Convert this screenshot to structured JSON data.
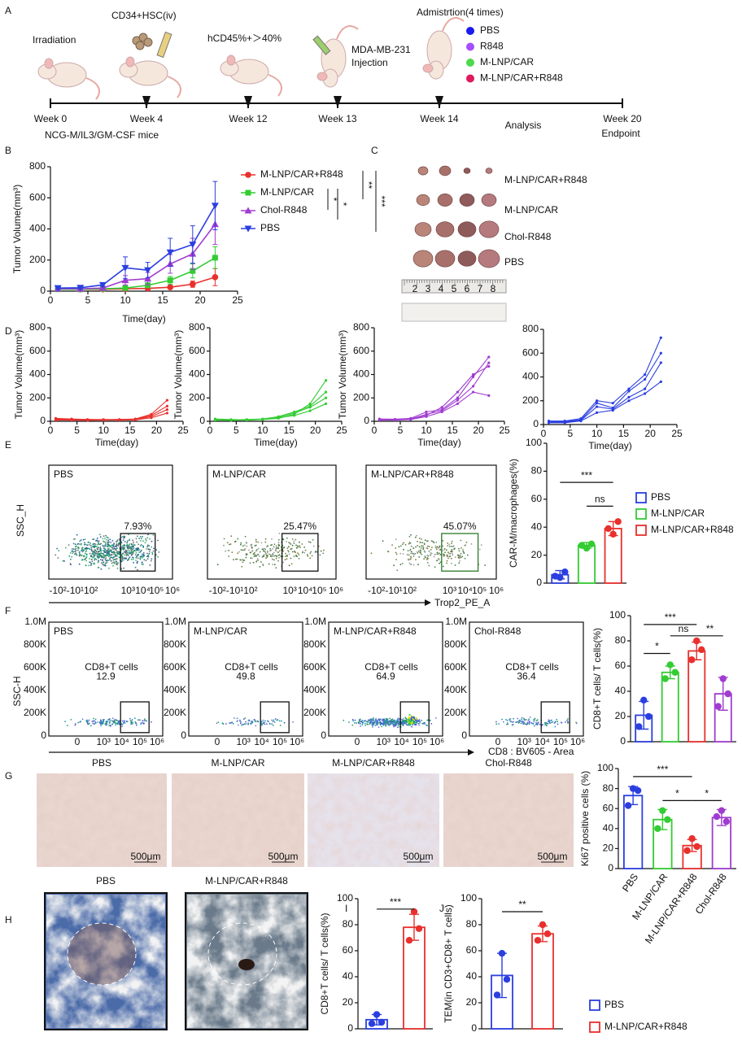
{
  "panel_labels": [
    "A",
    "B",
    "C",
    "D",
    "E",
    "F",
    "G",
    "H",
    "I",
    "J"
  ],
  "timeline": {
    "weeks": [
      "Week 0",
      "Week 4",
      "Week 12",
      "Week 13",
      "Week 14",
      "Week 20"
    ],
    "notes": [
      "NCG-M/IL3/GM-CSF  mice",
      "Analysis",
      "Endpoint"
    ],
    "events": [
      "Irradiation",
      "CD34+HSC(iv)",
      "hCD45%+＞40%",
      "MDA-MB-231",
      "Injection",
      "Admistrtion(4 times)"
    ],
    "groups": [
      {
        "name": "PBS",
        "color": "#1a1aee"
      },
      {
        "name": "R848",
        "color": "#a64dff"
      },
      {
        "name": "M-LNP/CAR",
        "color": "#4cd94c"
      },
      {
        "name": "M-LNP/CAR+R848",
        "color": "#de1a5a"
      }
    ]
  },
  "panel_c": {
    "groups": [
      "M-LNP/CAR+R848",
      "M-LNP/CAR",
      "Chol-R848",
      "PBS"
    ],
    "ruler": [
      "2",
      "3",
      "4",
      "5",
      "6",
      "7",
      "8"
    ]
  },
  "panel_e": {
    "y_label": "SSC_H",
    "x_label": "Trop2_PE_A",
    "x_ticks": [
      "-10²-10¹10²",
      "10³",
      "10⁴",
      "10⁵",
      "10⁶"
    ],
    "plots": [
      {
        "label": "PBS",
        "gate": "7.93%"
      },
      {
        "label": "M-LNP/CAR",
        "gate": "25.47%"
      },
      {
        "label": "M-LNP/CAR+R848",
        "gate": "45.07%"
      }
    ]
  },
  "panel_f": {
    "y_label": "SSC-H",
    "x_label": "CD8 : BV605 - Area",
    "y_ticks": [
      "1.0M",
      "800K",
      "600K",
      "400K",
      "200K",
      "0"
    ],
    "x_ticks": [
      "0",
      "10³",
      "10⁴",
      "10⁵",
      "10⁶"
    ],
    "gate_label": "CD8+T cells",
    "plots": [
      {
        "label": "PBS",
        "value": "12.9"
      },
      {
        "label": "M-LNP/CAR",
        "value": "49.8"
      },
      {
        "label": "M-LNP/CAR+R848",
        "value": "64.9"
      },
      {
        "label": "Chol-R848",
        "value": "36.4"
      }
    ]
  },
  "panel_g": {
    "groups": [
      "PBS",
      "M-LNP/CAR",
      "M-LNP/CAR+R848",
      "Chol-R848"
    ],
    "scale": "500μm"
  },
  "panel_h": {
    "groups": [
      "PBS",
      "M-LNP/CAR+R848"
    ]
  },
  "chart_data": [
    {
      "type": "line",
      "ylabel": "Tumor Volume(mm³)",
      "xlabel": "Time(day)",
      "x": [
        1,
        4,
        7,
        10,
        13,
        16,
        19,
        22
      ],
      "xlim": [
        0,
        25
      ],
      "xticks": [
        0,
        5,
        10,
        15,
        20,
        25
      ],
      "ylim": [
        0,
        800
      ],
      "yticks": [
        0,
        200,
        400,
        600,
        800
      ],
      "series": [
        {
          "name": "M-LNP/CAR+R848",
          "color": "#e8302d",
          "marker": "circle",
          "values": [
            15,
            12,
            12,
            15,
            18,
            25,
            45,
            90
          ],
          "errors": [
            4,
            4,
            4,
            5,
            6,
            10,
            20,
            55
          ]
        },
        {
          "name": "M-LNP/CAR",
          "color": "#33cc33",
          "marker": "square",
          "values": [
            12,
            12,
            15,
            20,
            38,
            70,
            130,
            215
          ],
          "errors": [
            3,
            3,
            5,
            10,
            15,
            25,
            45,
            70
          ]
        },
        {
          "name": "Chol-R848",
          "color": "#a03cd0",
          "marker": "triangle-up",
          "values": [
            15,
            15,
            20,
            70,
            80,
            175,
            240,
            430
          ],
          "errors": [
            5,
            5,
            10,
            30,
            40,
            60,
            100,
            130
          ]
        },
        {
          "name": "PBS",
          "color": "#2b3fe0",
          "marker": "triangle-down",
          "values": [
            20,
            22,
            40,
            150,
            135,
            250,
            300,
            550
          ],
          "errors": [
            5,
            6,
            10,
            70,
            50,
            90,
            120,
            155
          ]
        }
      ],
      "annotations": [
        "*",
        "*",
        "**",
        "***"
      ]
    },
    {
      "type": "line",
      "ylabel": "Tumor Volume(mm³)",
      "xlabel": "Time(day)",
      "x": [
        1,
        4,
        7,
        10,
        13,
        16,
        19,
        22
      ],
      "xlim": [
        0,
        25
      ],
      "xticks": [
        0,
        5,
        10,
        15,
        20,
        25
      ],
      "ylim": [
        0,
        800
      ],
      "yticks": [
        0,
        200,
        400,
        600,
        800
      ],
      "series": [
        {
          "color": "#e8302d",
          "values": [
            25,
            20,
            15,
            15,
            15,
            20,
            60,
            180
          ]
        },
        {
          "color": "#e8302d",
          "values": [
            20,
            18,
            15,
            12,
            15,
            18,
            50,
            130
          ]
        },
        {
          "color": "#e8302d",
          "values": [
            15,
            12,
            10,
            12,
            12,
            15,
            40,
            100
          ]
        },
        {
          "color": "#e8302d",
          "values": [
            10,
            10,
            8,
            10,
            10,
            12,
            30,
            70
          ]
        }
      ]
    },
    {
      "type": "line",
      "ylabel": "Tumor Volume(mm³)",
      "xlabel": "Time(day)",
      "x": [
        1,
        4,
        7,
        10,
        13,
        16,
        19,
        22
      ],
      "xlim": [
        0,
        25
      ],
      "xticks": [
        0,
        5,
        10,
        15,
        20,
        25
      ],
      "ylim": [
        0,
        800
      ],
      "yticks": [
        0,
        200,
        400,
        600,
        800
      ],
      "series": [
        {
          "color": "#33cc33",
          "values": [
            20,
            15,
            12,
            15,
            25,
            60,
            150,
            350
          ]
        },
        {
          "color": "#33cc33",
          "values": [
            15,
            12,
            15,
            20,
            40,
            80,
            130,
            250
          ]
        },
        {
          "color": "#33cc33",
          "values": [
            12,
            10,
            12,
            18,
            35,
            70,
            120,
            200
          ]
        },
        {
          "color": "#33cc33",
          "values": [
            10,
            8,
            10,
            15,
            30,
            50,
            90,
            150
          ]
        }
      ]
    },
    {
      "type": "line",
      "ylabel": "Tumor Volume(mm³)",
      "xlabel": "Time(day)",
      "x": [
        1,
        4,
        7,
        10,
        13,
        16,
        19,
        22
      ],
      "xlim": [
        0,
        25
      ],
      "xticks": [
        0,
        5,
        10,
        15,
        20,
        25
      ],
      "ylim": [
        0,
        800
      ],
      "yticks": [
        0,
        200,
        400,
        600,
        800
      ],
      "series": [
        {
          "color": "#a03cd0",
          "values": [
            20,
            18,
            25,
            80,
            100,
            200,
            380,
            550
          ]
        },
        {
          "color": "#a03cd0",
          "values": [
            15,
            15,
            20,
            60,
            90,
            180,
            300,
            500
          ]
        },
        {
          "color": "#a03cd0",
          "values": [
            12,
            12,
            18,
            50,
            120,
            250,
            400,
            470
          ]
        },
        {
          "color": "#a03cd0",
          "values": [
            10,
            10,
            15,
            40,
            80,
            150,
            250,
            220
          ]
        }
      ]
    },
    {
      "type": "line",
      "xlabel": "Time(day)",
      "x": [
        1,
        4,
        7,
        10,
        13,
        16,
        19,
        22
      ],
      "xlim": [
        0,
        25
      ],
      "xticks": [
        0,
        5,
        10,
        15,
        20,
        25
      ],
      "ylim": [
        0,
        800
      ],
      "yticks": [
        0,
        200,
        400,
        600,
        800
      ],
      "series": [
        {
          "color": "#2b3fe0",
          "values": [
            30,
            30,
            50,
            200,
            180,
            300,
            420,
            730
          ]
        },
        {
          "color": "#2b3fe0",
          "values": [
            25,
            25,
            40,
            180,
            140,
            280,
            380,
            600
          ]
        },
        {
          "color": "#2b3fe0",
          "values": [
            20,
            20,
            35,
            150,
            130,
            230,
            300,
            520
          ]
        },
        {
          "color": "#2b3fe0",
          "values": [
            15,
            15,
            30,
            100,
            120,
            200,
            260,
            360
          ]
        }
      ]
    },
    {
      "type": "bar",
      "ylabel": "CAR-M/macrophages(%)",
      "ylim": [
        0,
        100
      ],
      "yticks": [
        0,
        20,
        40,
        60,
        80,
        100
      ],
      "categories": [
        null,
        null,
        null
      ],
      "colors": [
        "#2b3fe0",
        "#33cc33",
        "#e8302d"
      ],
      "values": [
        6,
        27,
        39
      ],
      "errors": [
        3,
        2,
        5
      ],
      "points": [
        [
          4,
          8,
          5
        ],
        [
          25,
          28,
          27
        ],
        [
          35,
          44,
          39
        ]
      ],
      "legend": [
        "PBS",
        "M-LNP/CAR",
        "M-LNP/CAR+R848"
      ],
      "annotations": [
        "***",
        "ns"
      ]
    },
    {
      "type": "bar",
      "ylabel": "CD8+T cells/ T cells(%)",
      "ylim": [
        0,
        100
      ],
      "yticks": [
        0,
        20,
        40,
        60,
        80,
        100
      ],
      "categories": [
        null,
        null,
        null,
        null
      ],
      "colors": [
        "#2b3fe0",
        "#33cc33",
        "#e8302d",
        "#a03cd0"
      ],
      "values": [
        21,
        55,
        72,
        38
      ],
      "errors": [
        11,
        5,
        7,
        13
      ],
      "points": [
        [
          33,
          20,
          12
        ],
        [
          61,
          55,
          50
        ],
        [
          80,
          73,
          65
        ],
        [
          50,
          38,
          28
        ]
      ],
      "annotations": [
        "***",
        "ns",
        "**",
        "*"
      ]
    },
    {
      "type": "bar",
      "ylabel": "Ki67 positive cells (%)",
      "ylim": [
        0,
        100
      ],
      "yticks": [
        0,
        20,
        40,
        60,
        80,
        100
      ],
      "categories": [
        "PBS",
        "M-LNP/CAR",
        "M-LNP/CAR+R848",
        "Chol-R848"
      ],
      "colors": [
        "#2b3fe0",
        "#33cc33",
        "#e8302d",
        "#a03cd0"
      ],
      "values": [
        73,
        49,
        23,
        51
      ],
      "errors": [
        9,
        10,
        6,
        8
      ],
      "points": [
        [
          80,
          78,
          63
        ],
        [
          58,
          49,
          40
        ],
        [
          30,
          22,
          18
        ],
        [
          58,
          47,
          52
        ]
      ],
      "annotations": [
        "***",
        "*",
        "*"
      ]
    },
    {
      "type": "bar",
      "ylabel": "CD8+T cells/ T cells(%)",
      "ylim": [
        0,
        100
      ],
      "yticks": [
        0,
        20,
        40,
        60,
        80,
        100
      ],
      "categories": [
        null,
        null
      ],
      "colors": [
        "#2b3fe0",
        "#e8302d"
      ],
      "values": [
        7,
        78
      ],
      "errors": [
        4,
        10
      ],
      "points": [
        [
          11,
          5,
          4
        ],
        [
          90,
          77,
          68
        ]
      ],
      "annotations": [
        "***"
      ]
    },
    {
      "type": "bar",
      "ylabel": "TEM(in CD3+CD8+ T cells)",
      "ylim": [
        0,
        100
      ],
      "yticks": [
        0,
        20,
        40,
        60,
        80,
        100
      ],
      "categories": [
        null,
        null
      ],
      "colors": [
        "#2b3fe0",
        "#e8302d"
      ],
      "values": [
        41,
        73
      ],
      "errors": [
        17,
        6
      ],
      "points": [
        [
          58,
          38,
          26
        ],
        [
          80,
          73,
          68
        ]
      ],
      "legend": [
        "PBS",
        "M-LNP/CAR+R848"
      ],
      "annotations": [
        "**"
      ]
    }
  ]
}
